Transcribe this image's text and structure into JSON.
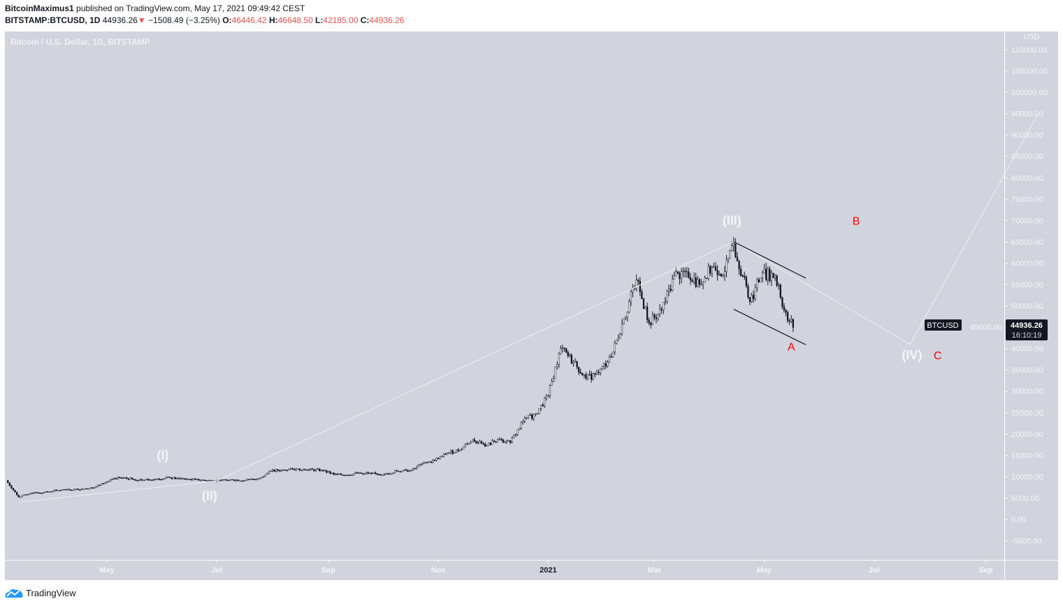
{
  "header": {
    "author": "BitcoinMaximus1",
    "published": "published on TradingView.com, May 17, 2021 09:49:42 CEST",
    "symbol": "BITSTAMP:BTCUSD, 1D",
    "last": "44936.26",
    "change": "−1508.49 (−3.25%)",
    "o_label": "O:",
    "o": "46446.42",
    "h_label": "H:",
    "h": "46648.50",
    "l_label": "L:",
    "l": "42185.00",
    "c_label": "C:",
    "c": "44936.26",
    "direction_icon": "triangle-down-icon"
  },
  "legend_title": "Bitcoin / U.S. Dollar, 1D, BITSTAMP",
  "price_axis": {
    "currency": "USD",
    "last_symbol": "BTCUSD",
    "last_price": "44936.26",
    "countdown": "16:10:19"
  },
  "colors": {
    "background": "#d1d4dc",
    "down": "#131722",
    "up": "#ffffff",
    "wave_line": "#e9eaee",
    "correction_label": "#ff0000",
    "last_price_bg": "#131722",
    "brand": "#2196f3"
  },
  "footer": {
    "brand": "TradingView"
  },
  "chart_data": {
    "type": "candlestick",
    "title": "Bitcoin / U.S. Dollar, 1D, BITSTAMP",
    "ylim": [
      -9500,
      114000
    ],
    "xlim": [
      "2020-03-06",
      "2021-09-30"
    ],
    "y_ticks": [
      "110000.00",
      "105000.00",
      "100000.00",
      "95000.00",
      "90000.00",
      "85000.00",
      "80000.00",
      "75000.00",
      "70000.00",
      "65000.00",
      "60000.00",
      "55000.00",
      "50000.00",
      "45000.00",
      "40000.00",
      "35000.00",
      "30000.00",
      "25000.00",
      "20000.00",
      "15000.00",
      "10000.00",
      "5000.00",
      "0.00",
      "-5000.00"
    ],
    "x_ticks": [
      {
        "date": "2020-05-01",
        "label": "May"
      },
      {
        "date": "2020-07-01",
        "label": "Jul"
      },
      {
        "date": "2020-09-01",
        "label": "Sep"
      },
      {
        "date": "2020-11-01",
        "label": "Nov"
      },
      {
        "date": "2021-01-01",
        "label": "2021",
        "bold": true
      },
      {
        "date": "2021-03-01",
        "label": "Mar"
      },
      {
        "date": "2021-05-01",
        "label": "May"
      },
      {
        "date": "2021-07-01",
        "label": "Jul"
      },
      {
        "date": "2021-09-01",
        "label": "Sep"
      }
    ],
    "closes_weekly": [
      [
        "2020-03-06",
        9100
      ],
      [
        "2020-03-13",
        5200
      ],
      [
        "2020-03-20",
        6200
      ],
      [
        "2020-03-27",
        6300
      ],
      [
        "2020-04-03",
        6800
      ],
      [
        "2020-04-10",
        6900
      ],
      [
        "2020-04-17",
        7100
      ],
      [
        "2020-04-24",
        7500
      ],
      [
        "2020-05-01",
        8800
      ],
      [
        "2020-05-08",
        9800
      ],
      [
        "2020-05-15",
        9400
      ],
      [
        "2020-05-22",
        9200
      ],
      [
        "2020-05-29",
        9500
      ],
      [
        "2020-06-05",
        9700
      ],
      [
        "2020-06-12",
        9500
      ],
      [
        "2020-06-19",
        9300
      ],
      [
        "2020-06-26",
        9100
      ],
      [
        "2020-07-03",
        9100
      ],
      [
        "2020-07-10",
        9250
      ],
      [
        "2020-07-17",
        9150
      ],
      [
        "2020-07-24",
        9600
      ],
      [
        "2020-07-31",
        11300
      ],
      [
        "2020-08-07",
        11600
      ],
      [
        "2020-08-14",
        11800
      ],
      [
        "2020-08-21",
        11600
      ],
      [
        "2020-08-28",
        11500
      ],
      [
        "2020-09-04",
        10500
      ],
      [
        "2020-09-11",
        10400
      ],
      [
        "2020-09-18",
        10900
      ],
      [
        "2020-09-25",
        10700
      ],
      [
        "2020-10-02",
        10600
      ],
      [
        "2020-10-09",
        11300
      ],
      [
        "2020-10-16",
        11400
      ],
      [
        "2020-10-23",
        13000
      ],
      [
        "2020-10-30",
        13800
      ],
      [
        "2020-11-06",
        15500
      ],
      [
        "2020-11-13",
        16300
      ],
      [
        "2020-11-20",
        18700
      ],
      [
        "2020-11-27",
        17100
      ],
      [
        "2020-12-04",
        18700
      ],
      [
        "2020-12-11",
        18000
      ],
      [
        "2020-12-18",
        23000
      ],
      [
        "2020-12-25",
        24700
      ],
      [
        "2021-01-01",
        29000
      ],
      [
        "2021-01-08",
        40000
      ],
      [
        "2021-01-15",
        36800
      ],
      [
        "2021-01-22",
        33000
      ],
      [
        "2021-01-29",
        34300
      ],
      [
        "2021-02-05",
        38000
      ],
      [
        "2021-02-12",
        47000
      ],
      [
        "2021-02-19",
        56000
      ],
      [
        "2021-02-26",
        46000
      ],
      [
        "2021-03-05",
        49000
      ],
      [
        "2021-03-12",
        57000
      ],
      [
        "2021-03-19",
        58000
      ],
      [
        "2021-03-26",
        55000
      ],
      [
        "2021-04-02",
        59000
      ],
      [
        "2021-04-09",
        58000
      ],
      [
        "2021-04-14",
        64500
      ],
      [
        "2021-04-23",
        51000
      ],
      [
        "2021-04-30",
        57700
      ],
      [
        "2021-05-07",
        57000
      ],
      [
        "2021-05-12",
        49000
      ],
      [
        "2021-05-17",
        44936.26
      ]
    ],
    "wave_path": [
      [
        "2020-03-13",
        4000
      ],
      [
        "2020-07-01",
        9000
      ],
      [
        "2021-04-14",
        65000
      ],
      [
        "2021-07-21",
        41000
      ],
      [
        "2021-09-30",
        95000
      ]
    ],
    "channel": [
      {
        "from": [
          "2021-04-14",
          65000
        ],
        "to": [
          "2021-05-24",
          56500
        ]
      },
      {
        "from": [
          "2021-04-14",
          49200
        ],
        "to": [
          "2021-05-24",
          40900
        ]
      }
    ],
    "wave_labels": [
      {
        "text": "(I)",
        "date": "2020-06-01",
        "price": 14000,
        "kind": "impulse"
      },
      {
        "text": "(II)",
        "date": "2020-06-27",
        "price": 4500,
        "kind": "impulse"
      },
      {
        "text": "(III)",
        "date": "2021-04-13",
        "price": 69000,
        "kind": "impulse"
      },
      {
        "text": "(IV)",
        "date": "2021-07-22",
        "price": 37500,
        "kind": "impulse"
      },
      {
        "text": "A",
        "date": "2021-05-16",
        "price": 39500,
        "kind": "correction"
      },
      {
        "text": "B",
        "date": "2021-06-21",
        "price": 69000,
        "kind": "correction"
      },
      {
        "text": "C",
        "date": "2021-07-27",
        "price": 37500,
        "kind": "correction"
      }
    ]
  }
}
